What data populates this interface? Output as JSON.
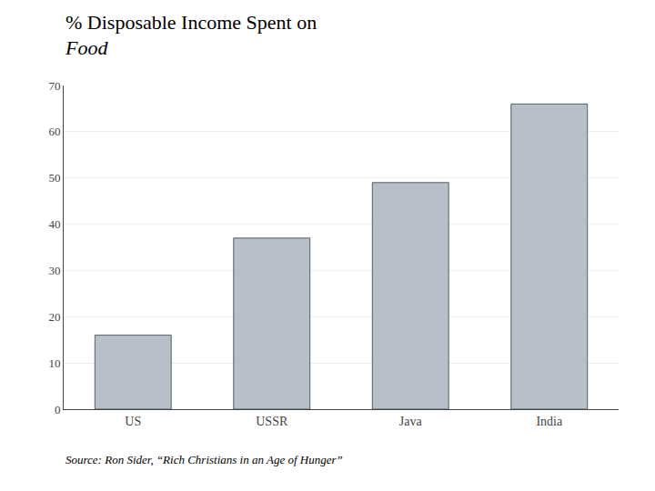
{
  "chart_data": {
    "type": "bar",
    "title": "% Disposable Income Spent on",
    "subtitle": "Food",
    "annotations": [
      "Source: Ron Sider, “Rich Christians in an Age of Hunger”"
    ],
    "categories": [
      "US",
      "USSR",
      "Java",
      "India"
    ],
    "values": [
      16,
      37,
      49,
      66
    ],
    "color": "#b8bfc8",
    "ylim": [
      0,
      70
    ],
    "yticks": [
      0,
      10,
      20,
      30,
      40,
      50,
      60,
      70
    ],
    "grid": true
  }
}
